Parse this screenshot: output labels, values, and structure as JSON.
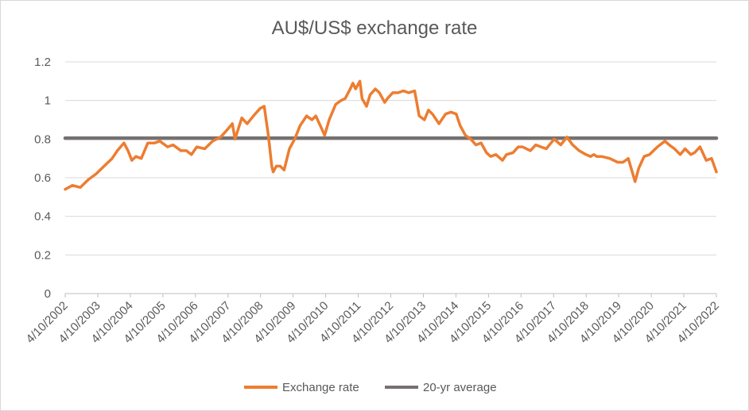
{
  "chart_data": {
    "type": "line",
    "title": "AU$/US$ exchange rate",
    "xlabel": "",
    "ylabel": "",
    "ylim": [
      0,
      1.2
    ],
    "yticks": [
      "0",
      "0.2",
      "0.4",
      "0.6",
      "0.8",
      "1",
      "1.2"
    ],
    "xticks": [
      "4/10/2002",
      "4/10/2003",
      "4/10/2004",
      "4/10/2005",
      "4/10/2006",
      "4/10/2007",
      "4/10/2008",
      "4/10/2009",
      "4/10/2010",
      "4/10/2011",
      "4/10/2012",
      "4/10/2013",
      "4/10/2014",
      "4/10/2015",
      "4/10/2016",
      "4/10/2017",
      "4/10/2018",
      "4/10/2019",
      "4/10/2020",
      "4/10/2021",
      "4/10/2022"
    ],
    "grid": "horizontal",
    "legend_position": "bottom",
    "series": [
      {
        "name": "Exchange rate",
        "color": "#ED7D31",
        "x": [
          "2002-04-10",
          "2002-07-01",
          "2002-10-01",
          "2003-01-01",
          "2003-04-01",
          "2003-07-01",
          "2003-10-01",
          "2003-12-01",
          "2004-02-15",
          "2004-04-01",
          "2004-05-15",
          "2004-07-01",
          "2004-09-01",
          "2004-11-15",
          "2005-02-01",
          "2005-04-01",
          "2005-07-01",
          "2005-09-01",
          "2005-12-01",
          "2006-02-01",
          "2006-04-01",
          "2006-06-01",
          "2006-09-01",
          "2006-12-01",
          "2007-03-01",
          "2007-05-01",
          "2007-07-15",
          "2007-08-15",
          "2007-11-01",
          "2008-01-01",
          "2008-04-01",
          "2008-06-01",
          "2008-07-15",
          "2008-09-01",
          "2008-10-10",
          "2008-10-27",
          "2008-12-01",
          "2009-01-15",
          "2009-03-01",
          "2009-05-01",
          "2009-07-01",
          "2009-09-01",
          "2009-11-15",
          "2010-01-15",
          "2010-03-01",
          "2010-05-01",
          "2010-06-10",
          "2010-08-01",
          "2010-10-15",
          "2010-12-15",
          "2011-02-01",
          "2011-04-01",
          "2011-05-01",
          "2011-06-01",
          "2011-07-20",
          "2011-08-15",
          "2011-10-05",
          "2011-11-15",
          "2012-01-15",
          "2012-03-01",
          "2012-05-01",
          "2012-06-01",
          "2012-08-01",
          "2012-10-01",
          "2012-12-01",
          "2013-02-01",
          "2013-04-10",
          "2013-06-01",
          "2013-08-01",
          "2013-09-15",
          "2013-11-01",
          "2014-01-15",
          "2014-04-01",
          "2014-06-01",
          "2014-08-01",
          "2014-09-15",
          "2014-11-15",
          "2015-01-15",
          "2015-03-15",
          "2015-05-15",
          "2015-07-15",
          "2015-09-01",
          "2015-11-01",
          "2016-01-15",
          "2016-03-01",
          "2016-05-15",
          "2016-07-15",
          "2016-09-01",
          "2016-12-01",
          "2017-02-01",
          "2017-04-01",
          "2017-06-01",
          "2017-09-01",
          "2017-11-15",
          "2018-01-25",
          "2018-04-01",
          "2018-06-15",
          "2018-09-01",
          "2018-10-25",
          "2018-12-01",
          "2019-01-03",
          "2019-03-01",
          "2019-06-01",
          "2019-09-01",
          "2019-11-01",
          "2020-01-01",
          "2020-03-19",
          "2020-05-01",
          "2020-07-01",
          "2020-09-01",
          "2020-12-01",
          "2021-02-25",
          "2021-04-15",
          "2021-06-15",
          "2021-08-20",
          "2021-10-15",
          "2021-12-20",
          "2022-02-01",
          "2022-04-05",
          "2022-06-15",
          "2022-08-15",
          "2022-10-10"
        ],
        "y": [
          0.54,
          0.56,
          0.55,
          0.59,
          0.62,
          0.66,
          0.7,
          0.74,
          0.78,
          0.74,
          0.69,
          0.71,
          0.7,
          0.78,
          0.78,
          0.79,
          0.76,
          0.77,
          0.74,
          0.74,
          0.72,
          0.76,
          0.75,
          0.79,
          0.81,
          0.84,
          0.88,
          0.8,
          0.91,
          0.88,
          0.93,
          0.96,
          0.97,
          0.82,
          0.66,
          0.63,
          0.66,
          0.66,
          0.64,
          0.75,
          0.8,
          0.87,
          0.92,
          0.9,
          0.92,
          0.86,
          0.82,
          0.9,
          0.98,
          1.0,
          1.01,
          1.06,
          1.09,
          1.06,
          1.1,
          1.01,
          0.97,
          1.03,
          1.06,
          1.04,
          0.99,
          1.01,
          1.04,
          1.04,
          1.05,
          1.04,
          1.05,
          0.92,
          0.9,
          0.95,
          0.93,
          0.88,
          0.93,
          0.94,
          0.93,
          0.87,
          0.82,
          0.8,
          0.77,
          0.78,
          0.73,
          0.71,
          0.72,
          0.69,
          0.72,
          0.73,
          0.76,
          0.76,
          0.74,
          0.77,
          0.76,
          0.75,
          0.8,
          0.77,
          0.81,
          0.77,
          0.74,
          0.72,
          0.71,
          0.72,
          0.71,
          0.71,
          0.7,
          0.68,
          0.68,
          0.7,
          0.58,
          0.65,
          0.71,
          0.72,
          0.76,
          0.79,
          0.77,
          0.75,
          0.72,
          0.75,
          0.72,
          0.73,
          0.76,
          0.69,
          0.7,
          0.63
        ]
      },
      {
        "name": "20-yr average",
        "color": "#767171",
        "x": [
          "2002-04-10",
          "2022-10-10"
        ],
        "y": [
          0.805,
          0.805
        ]
      }
    ]
  },
  "legend": {
    "items": [
      {
        "label": "Exchange rate",
        "color": "#ED7D31"
      },
      {
        "label": "20-yr average",
        "color": "#767171"
      }
    ]
  }
}
